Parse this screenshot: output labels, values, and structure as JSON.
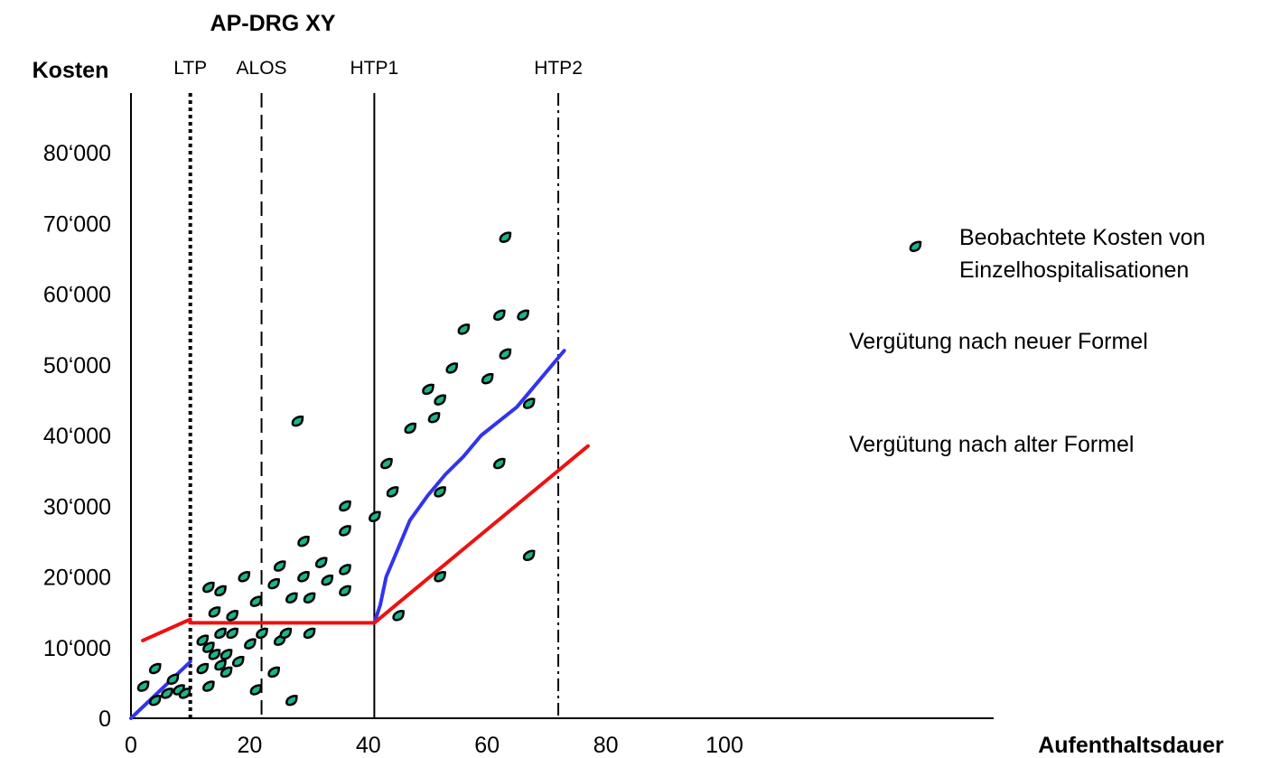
{
  "chart_data": {
    "type": "scatter",
    "title": "AP-DRG XY",
    "ylabel": "Kosten",
    "xlabel": "Aufenthaltsdauer",
    "xlim": [
      0,
      110
    ],
    "ylim": [
      0,
      88000
    ],
    "x_ticks": [
      0,
      20,
      40,
      60,
      80,
      100
    ],
    "x_tick_labels": [
      "0",
      "20",
      "40",
      "60",
      "80",
      "100"
    ],
    "y_ticks": [
      0,
      10000,
      20000,
      30000,
      40000,
      50000,
      60000,
      70000,
      80000
    ],
    "y_tick_labels": [
      "0",
      "10‘000",
      "20‘000",
      "30‘000",
      "40‘000",
      "50‘000",
      "60‘000",
      "70‘000",
      "80‘000"
    ],
    "reference_lines": [
      {
        "label": "LTP",
        "x": 10,
        "style": "dotted"
      },
      {
        "label": "ALOS",
        "x": 22,
        "style": "dashed"
      },
      {
        "label": "HTP1",
        "x": 41,
        "style": "solid"
      },
      {
        "label": "HTP2",
        "x": 72,
        "style": "dashdot"
      }
    ],
    "series": [
      {
        "name": "Beobachtete Kosten von Einzelhospitalisationen",
        "kind": "points",
        "color": "#1ab58a",
        "points": [
          [
            2,
            4500
          ],
          [
            4,
            2500
          ],
          [
            4,
            7000
          ],
          [
            6,
            3500
          ],
          [
            7,
            5500
          ],
          [
            8,
            4000
          ],
          [
            9,
            3500
          ],
          [
            12,
            11000
          ],
          [
            12,
            7000
          ],
          [
            13,
            10000
          ],
          [
            13,
            4500
          ],
          [
            13,
            18500
          ],
          [
            14,
            15000
          ],
          [
            14,
            9000
          ],
          [
            15,
            18000
          ],
          [
            15,
            12000
          ],
          [
            15,
            7500
          ],
          [
            16,
            6500
          ],
          [
            16,
            9000
          ],
          [
            17,
            14500
          ],
          [
            17,
            12000
          ],
          [
            18,
            8000
          ],
          [
            19,
            20000
          ],
          [
            20,
            10500
          ],
          [
            21,
            16500
          ],
          [
            21,
            4000
          ],
          [
            22,
            12000
          ],
          [
            24,
            19000
          ],
          [
            24,
            6500
          ],
          [
            25,
            21500
          ],
          [
            25,
            11000
          ],
          [
            26,
            12000
          ],
          [
            27,
            17000
          ],
          [
            27,
            2500
          ],
          [
            28,
            42000
          ],
          [
            29,
            25000
          ],
          [
            29,
            20000
          ],
          [
            30,
            17000
          ],
          [
            30,
            12000
          ],
          [
            32,
            22000
          ],
          [
            33,
            19500
          ],
          [
            36,
            18000
          ],
          [
            36,
            21000
          ],
          [
            36,
            26500
          ],
          [
            36,
            30000
          ],
          [
            41,
            28500
          ],
          [
            43,
            36000
          ],
          [
            44,
            32000
          ],
          [
            45,
            14500
          ],
          [
            47,
            41000
          ],
          [
            50,
            46500
          ],
          [
            51,
            42500
          ],
          [
            52,
            32000
          ],
          [
            52,
            45000
          ],
          [
            52,
            20000
          ],
          [
            54,
            49500
          ],
          [
            56,
            55000
          ],
          [
            60,
            48000
          ],
          [
            62,
            57000
          ],
          [
            62,
            36000
          ],
          [
            63,
            68000
          ],
          [
            63,
            51500
          ],
          [
            66,
            57000
          ],
          [
            67,
            23000
          ],
          [
            67,
            44500
          ]
        ]
      },
      {
        "name": "Vergütung nach neuer Formel",
        "kind": "line",
        "color": "#3333ee",
        "segments": [
          [
            [
              0,
              0
            ],
            [
              10,
              8000
            ]
          ],
          [
            [
              41,
              13500
            ],
            [
              42,
              16000
            ],
            [
              43,
              20000
            ],
            [
              45,
              24000
            ],
            [
              47,
              28000
            ],
            [
              50,
              31500
            ],
            [
              53,
              34500
            ],
            [
              56,
              37000
            ],
            [
              59,
              40000
            ],
            [
              62,
              42000
            ],
            [
              65,
              44000
            ],
            [
              67,
              46000
            ],
            [
              73,
              52000
            ]
          ]
        ]
      },
      {
        "name": "Vergütung nach alter Formel",
        "kind": "line",
        "color": "#ee1111",
        "segments": [
          [
            [
              2,
              11000
            ],
            [
              10,
              14000
            ]
          ],
          [
            [
              10,
              13500
            ],
            [
              41,
              13500
            ]
          ],
          [
            [
              41,
              13500
            ],
            [
              77,
              38500
            ]
          ]
        ]
      }
    ]
  },
  "legend": {
    "points_label_line1": "Beobachtete Kosten von",
    "points_label_line2": "Einzelhospitalisationen",
    "new_formula_label": "Vergütung nach neuer Formel",
    "old_formula_label": "Vergütung nach alter Formel"
  }
}
